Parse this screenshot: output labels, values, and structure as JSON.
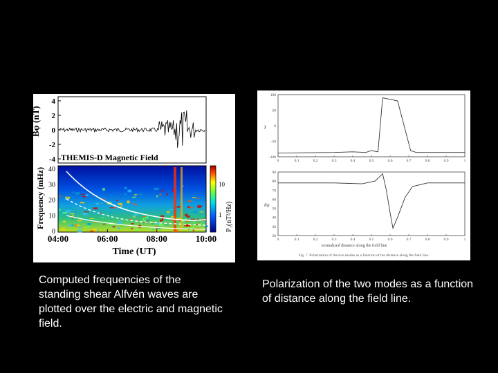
{
  "left_figure": {
    "panel_title": "THEMIS-D Magnetic Field",
    "top_ylabel": "Bφ (nT)",
    "top_yticks": [
      "4",
      "2",
      "0",
      "-2",
      "-4"
    ],
    "bottom_ylabel": "Frequency (mHz)",
    "bottom_yticks": [
      "40",
      "30",
      "20",
      "10",
      "0"
    ],
    "colorbar_label": "P₁(nT²/Hz)",
    "colorbar_ticks": [
      "10",
      "1"
    ],
    "xlabel": "Time (UT)",
    "xticks": [
      "04:00",
      "06:00",
      "08:00",
      "10:00"
    ]
  },
  "right_figure": {
    "top_ylabel": "χ",
    "top_yticks": [
      "100",
      "50",
      "0",
      "-50",
      "-100"
    ],
    "bottom_ylabel": "δψ",
    "bottom_yticks": [
      "90",
      "80",
      "70",
      "60",
      "50",
      "40",
      "30",
      "20"
    ],
    "xticks": [
      "0",
      "0.1",
      "0.2",
      "0.3",
      "0.4",
      "0.5",
      "0.6",
      "0.7",
      "0.8",
      "0.9",
      "1"
    ],
    "xlabel": "normalized distance along the field line",
    "fig_caption": "Fig. 7. Polarization of the two modes as a function of the distance along the field line."
  },
  "captions": {
    "left": "Computed frequencies of the standing shear Alfvén waves are plotted over the electric and magnetic field.",
    "right": "Polarization of the two modes as a function of distance along the field line."
  },
  "colors": {
    "background": "#000000",
    "caption_text": "#ffffff"
  }
}
